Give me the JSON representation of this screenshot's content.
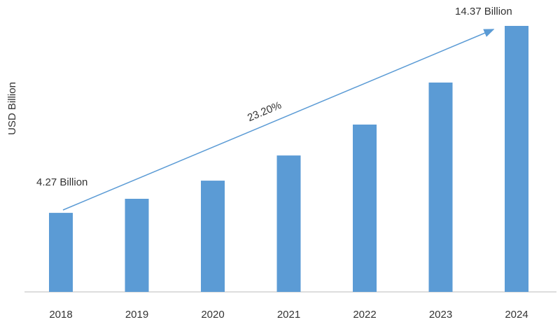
{
  "chart_data": {
    "type": "bar",
    "y_label": "USD Billion",
    "annotation": "23.20%",
    "categories": [
      "2018",
      "2019",
      "2020",
      "2021",
      "2022",
      "2023",
      "2024"
    ],
    "values": [
      4.27,
      5.03,
      6.01,
      7.37,
      9.04,
      11.31,
      14.37
    ],
    "value_labels": [
      "4.27 Billion",
      null,
      null,
      null,
      null,
      null,
      "14.37 Billion"
    ],
    "color": "#5b9bd5"
  }
}
